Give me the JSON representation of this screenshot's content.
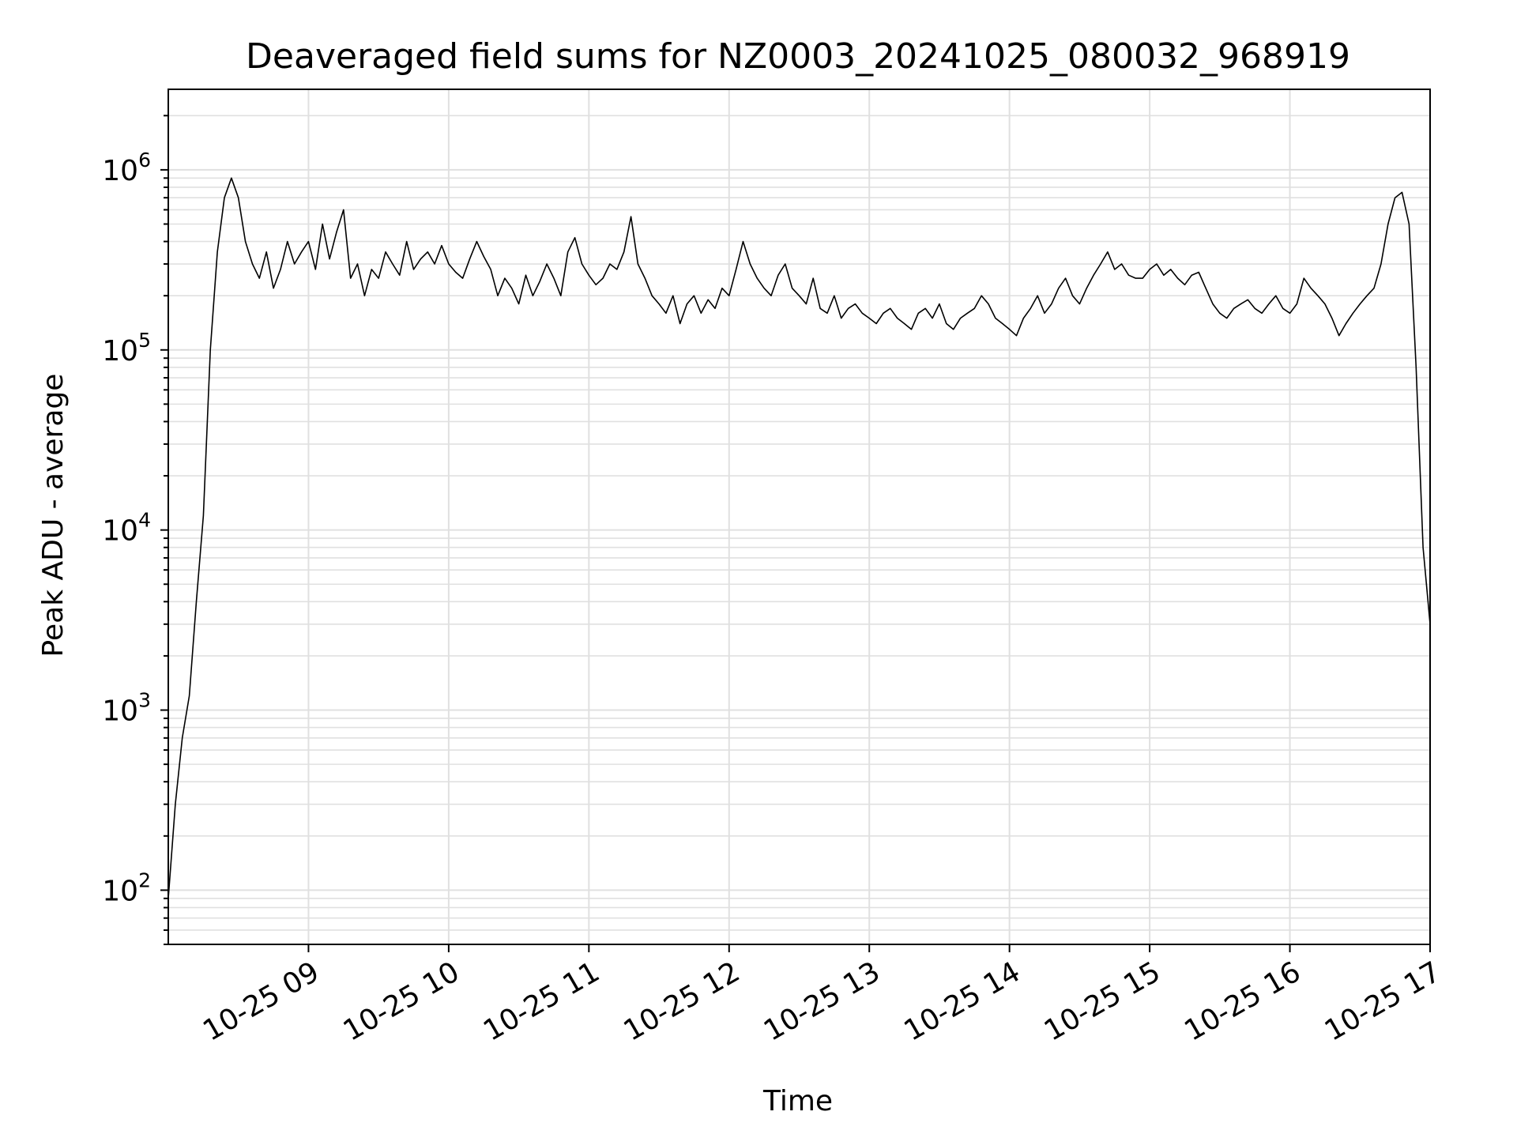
{
  "chart_data": {
    "type": "line",
    "title": "Deaveraged field sums for NZ0003_20241025_080032_968919",
    "xlabel": "Time",
    "ylabel": "Peak ADU - average",
    "yscale": "log",
    "xlim": [
      "10-25 08:00",
      "10-25 17:00"
    ],
    "ylim": [
      50,
      2800000
    ],
    "grid": true,
    "legend": "none",
    "line_color": "#000000",
    "x_ticks": [
      "10-25 09",
      "10-25 10",
      "10-25 11",
      "10-25 12",
      "10-25 13",
      "10-25 14",
      "10-25 15",
      "10-25 16",
      "10-25 17"
    ],
    "y_ticks": [
      {
        "base": "10",
        "exp": "2"
      },
      {
        "base": "10",
        "exp": "3"
      },
      {
        "base": "10",
        "exp": "4"
      },
      {
        "base": "10",
        "exp": "5"
      },
      {
        "base": "10",
        "exp": "6"
      }
    ],
    "series": [
      {
        "x": [
          "08:00",
          "08:03",
          "08:06",
          "08:09",
          "08:12",
          "08:15",
          "08:18",
          "08:21",
          "08:24",
          "08:27",
          "08:30",
          "08:33",
          "08:36",
          "08:39",
          "08:42",
          "08:45",
          "08:48",
          "08:51",
          "08:54",
          "08:57",
          "09:00",
          "09:03",
          "09:06",
          "09:09",
          "09:12",
          "09:15",
          "09:18",
          "09:21",
          "09:24",
          "09:27",
          "09:30",
          "09:33",
          "09:36",
          "09:39",
          "09:42",
          "09:45",
          "09:48",
          "09:51",
          "09:54",
          "09:57",
          "10:00",
          "10:03",
          "10:06",
          "10:09",
          "10:12",
          "10:15",
          "10:18",
          "10:21",
          "10:24",
          "10:27",
          "10:30",
          "10:33",
          "10:36",
          "10:39",
          "10:42",
          "10:45",
          "10:48",
          "10:51",
          "10:54",
          "10:57",
          "11:00",
          "11:03",
          "11:06",
          "11:09",
          "11:12",
          "11:15",
          "11:18",
          "11:21",
          "11:24",
          "11:27",
          "11:30",
          "11:33",
          "11:36",
          "11:39",
          "11:42",
          "11:45",
          "11:48",
          "11:51",
          "11:54",
          "11:57",
          "12:00",
          "12:03",
          "12:06",
          "12:09",
          "12:12",
          "12:15",
          "12:18",
          "12:21",
          "12:24",
          "12:27",
          "12:30",
          "12:33",
          "12:36",
          "12:39",
          "12:42",
          "12:45",
          "12:48",
          "12:51",
          "12:54",
          "12:57",
          "13:00",
          "13:03",
          "13:06",
          "13:09",
          "13:12",
          "13:15",
          "13:18",
          "13:21",
          "13:24",
          "13:27",
          "13:30",
          "13:33",
          "13:36",
          "13:39",
          "13:42",
          "13:45",
          "13:48",
          "13:51",
          "13:54",
          "13:57",
          "14:00",
          "14:03",
          "14:06",
          "14:09",
          "14:12",
          "14:15",
          "14:18",
          "14:21",
          "14:24",
          "14:27",
          "14:30",
          "14:33",
          "14:36",
          "14:39",
          "14:42",
          "14:45",
          "14:48",
          "14:51",
          "14:54",
          "14:57",
          "15:00",
          "15:03",
          "15:06",
          "15:09",
          "15:12",
          "15:15",
          "15:18",
          "15:21",
          "15:24",
          "15:27",
          "15:30",
          "15:33",
          "15:36",
          "15:39",
          "15:42",
          "15:45",
          "15:48",
          "15:51",
          "15:54",
          "15:57",
          "16:00",
          "16:03",
          "16:06",
          "16:09",
          "16:12",
          "16:15",
          "16:18",
          "16:21",
          "16:24",
          "16:27",
          "16:30",
          "16:33",
          "16:36",
          "16:39",
          "16:42",
          "16:45",
          "16:48",
          "16:51",
          "16:54",
          "16:57",
          "17:00"
        ],
        "y": [
          90,
          300,
          700,
          1200,
          4000,
          12000,
          100000,
          350000,
          700000,
          900000,
          700000,
          400000,
          300000,
          250000,
          350000,
          220000,
          280000,
          400000,
          300000,
          350000,
          400000,
          280000,
          500000,
          320000,
          450000,
          600000,
          250000,
          300000,
          200000,
          280000,
          250000,
          350000,
          300000,
          260000,
          400000,
          280000,
          320000,
          350000,
          300000,
          380000,
          300000,
          270000,
          250000,
          320000,
          400000,
          330000,
          280000,
          200000,
          250000,
          220000,
          180000,
          260000,
          200000,
          240000,
          300000,
          250000,
          200000,
          350000,
          420000,
          300000,
          260000,
          230000,
          250000,
          300000,
          280000,
          350000,
          550000,
          300000,
          250000,
          200000,
          180000,
          160000,
          200000,
          140000,
          180000,
          200000,
          160000,
          190000,
          170000,
          220000,
          200000,
          280000,
          400000,
          300000,
          250000,
          220000,
          200000,
          260000,
          300000,
          220000,
          200000,
          180000,
          250000,
          170000,
          160000,
          200000,
          150000,
          170000,
          180000,
          160000,
          150000,
          140000,
          160000,
          170000,
          150000,
          140000,
          130000,
          160000,
          170000,
          150000,
          180000,
          140000,
          130000,
          150000,
          160000,
          170000,
          200000,
          180000,
          150000,
          140000,
          130000,
          120000,
          150000,
          170000,
          200000,
          160000,
          180000,
          220000,
          250000,
          200000,
          180000,
          220000,
          260000,
          300000,
          350000,
          280000,
          300000,
          260000,
          250000,
          250000,
          280000,
          300000,
          260000,
          280000,
          250000,
          230000,
          260000,
          270000,
          220000,
          180000,
          160000,
          150000,
          170000,
          180000,
          190000,
          170000,
          160000,
          180000,
          200000,
          170000,
          160000,
          180000,
          250000,
          220000,
          200000,
          180000,
          150000,
          120000,
          140000,
          160000,
          180000,
          200000,
          220000,
          300000,
          500000,
          700000,
          750000,
          500000,
          80000,
          8000,
          3000
        ]
      }
    ]
  }
}
